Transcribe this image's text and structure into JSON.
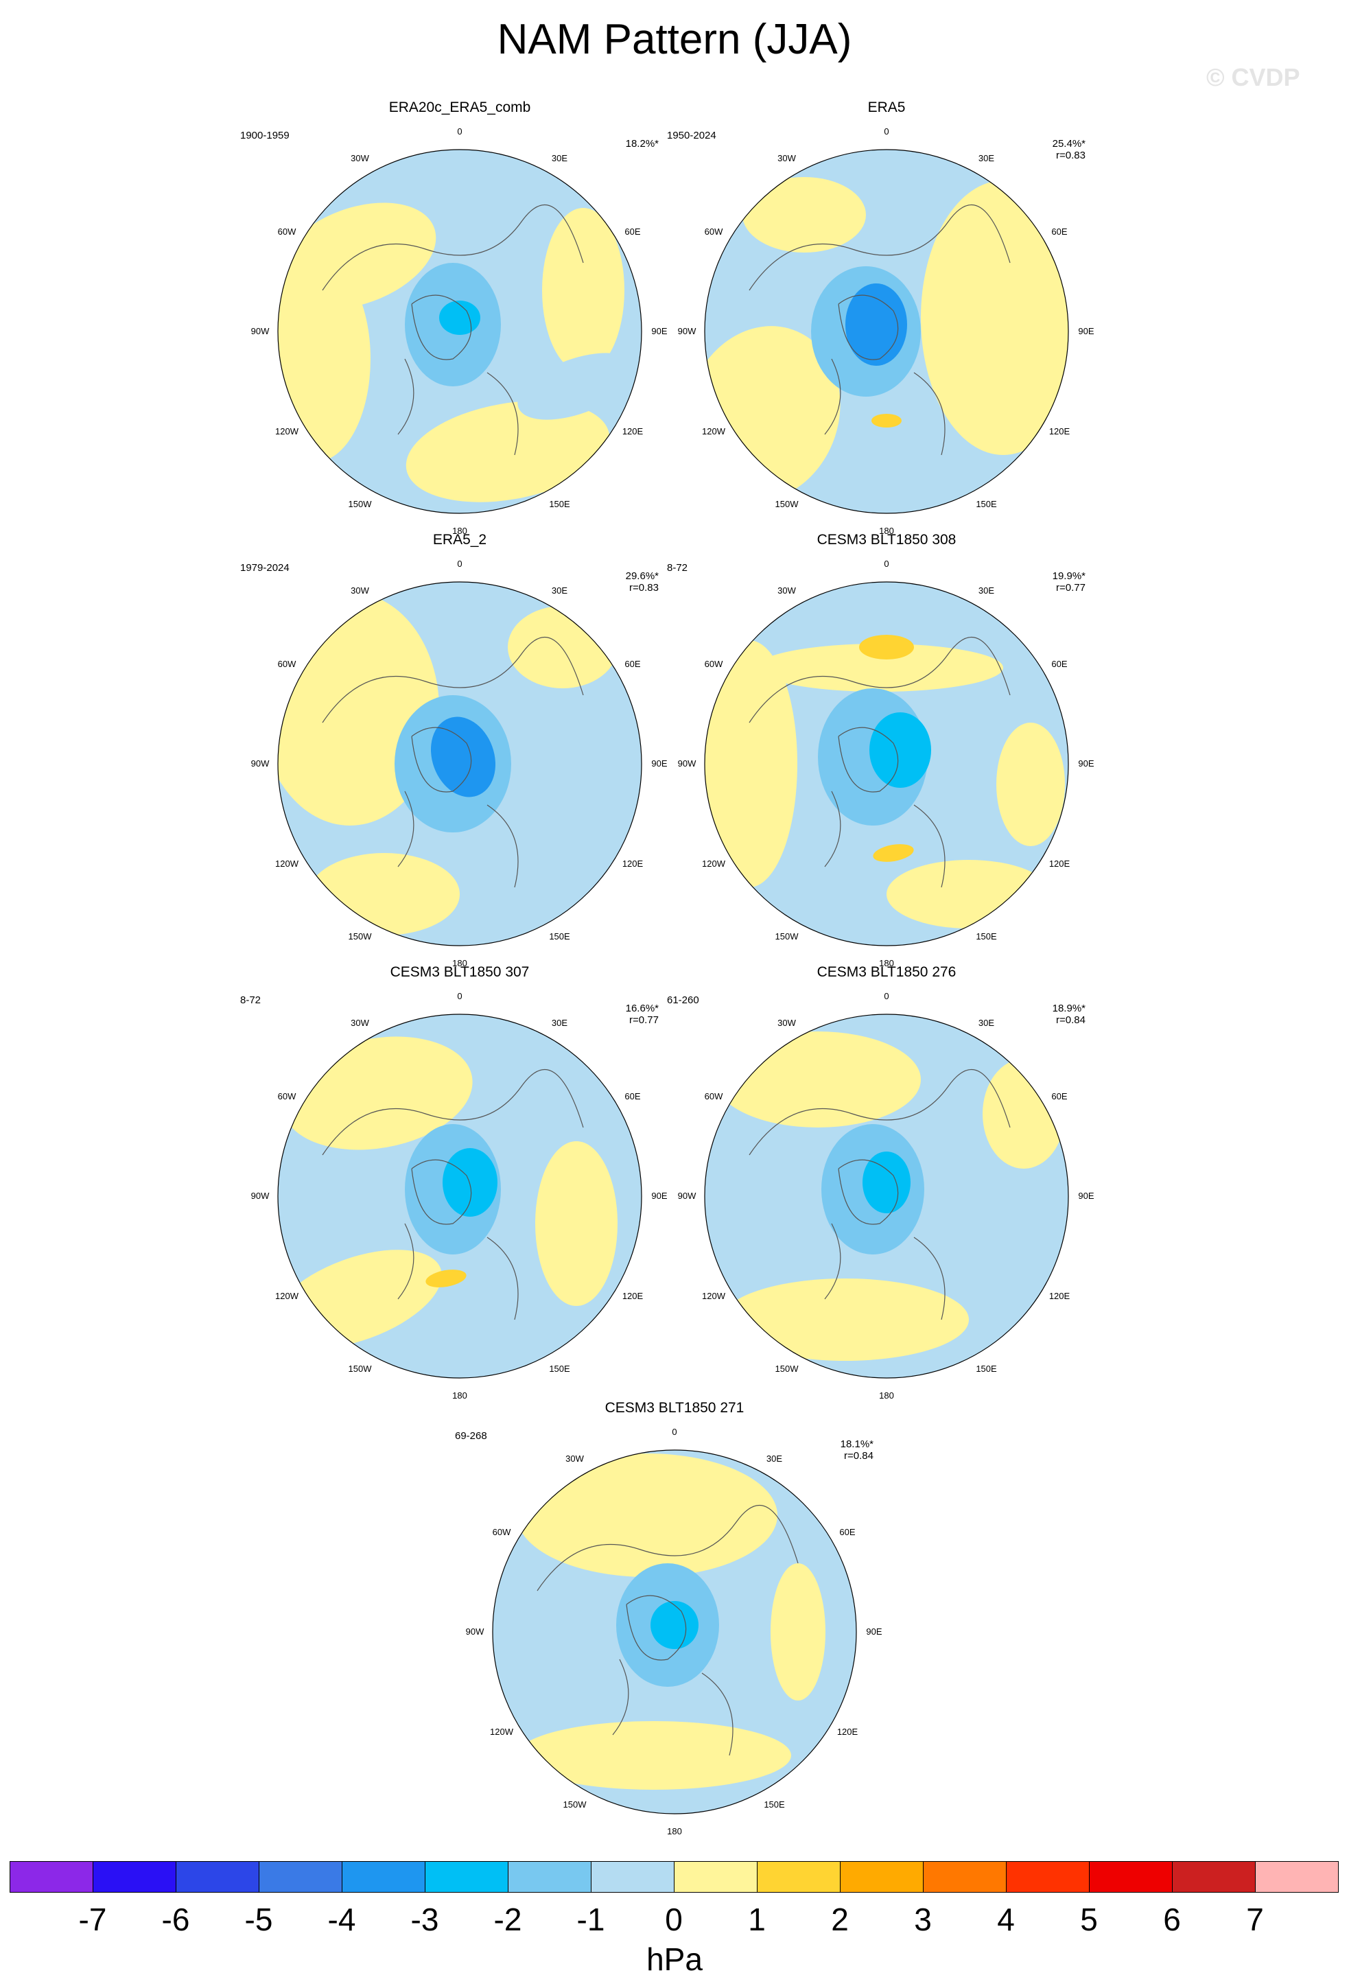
{
  "figure": {
    "title": "NAM Pattern (JJA)",
    "watermark": "© CVDP"
  },
  "panels": [
    {
      "title": "ERA20c_ERA5_comb",
      "period": "1900-1959",
      "pct": "18.2%*",
      "r": ""
    },
    {
      "title": "ERA5",
      "period": "1950-2024",
      "pct": "25.4%*",
      "r": "r=0.83"
    },
    {
      "title": "ERA5_2",
      "period": "1979-2024",
      "pct": "29.6%*",
      "r": "r=0.83"
    },
    {
      "title": "CESM3 BLT1850 308",
      "period": "8-72",
      "pct": "19.9%*",
      "r": "r=0.77"
    },
    {
      "title": "CESM3 BLT1850 307",
      "period": "8-72",
      "pct": "16.6%*",
      "r": "r=0.77"
    },
    {
      "title": "CESM3 BLT1850 276",
      "period": "61-260",
      "pct": "18.9%*",
      "r": "r=0.84"
    },
    {
      "title": "CESM3 BLT1850 271",
      "period": "69-268",
      "pct": "18.1%*",
      "r": "r=0.84"
    }
  ],
  "longitude_labels": [
    "180",
    "150E",
    "120E",
    "90E",
    "60E",
    "30E",
    "0",
    "30W",
    "60W",
    "90W",
    "120W",
    "150W"
  ],
  "colorbar": {
    "units": "hPa",
    "labels": [
      "-7",
      "-6",
      "-5",
      "-4",
      "-3",
      "-2",
      "-1",
      "0",
      "1",
      "2",
      "3",
      "4",
      "5",
      "6",
      "7"
    ],
    "colors": [
      "#8c28e8",
      "#2a10f5",
      "#2c46e8",
      "#3a7ae6",
      "#1e96f0",
      "#00bff5",
      "#78c8f0",
      "#b4dcf2",
      "#fff59a",
      "#ffd432",
      "#ffaa00",
      "#ff7800",
      "#ff3200",
      "#ee0000",
      "#cc2020",
      "#ffb4b4"
    ]
  }
}
